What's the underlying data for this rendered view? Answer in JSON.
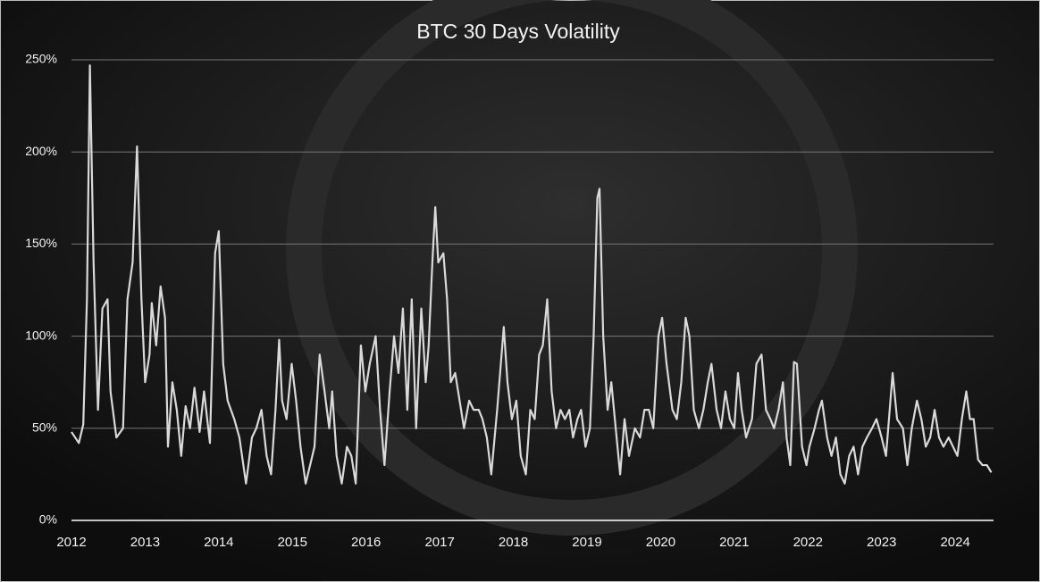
{
  "chart_data": {
    "type": "line",
    "title": "BTC 30 Days Volatility",
    "x": [
      2012.0,
      2012.1,
      2012.16,
      2012.21,
      2012.25,
      2012.3,
      2012.36,
      2012.42,
      2012.49,
      2012.53,
      2012.61,
      2012.7,
      2012.76,
      2012.83,
      2012.89,
      2012.95,
      2013.0,
      2013.06,
      2013.09,
      2013.15,
      2013.21,
      2013.27,
      2013.31,
      2013.37,
      2013.43,
      2013.49,
      2013.55,
      2013.61,
      2013.67,
      2013.74,
      2013.8,
      2013.88,
      2013.95,
      2014.0,
      2014.06,
      2014.12,
      2014.21,
      2014.28,
      2014.37,
      2014.45,
      2014.51,
      2014.58,
      2014.65,
      2014.71,
      2014.77,
      2014.82,
      2014.86,
      2014.92,
      2014.99,
      2015.05,
      2015.11,
      2015.18,
      2015.24,
      2015.3,
      2015.37,
      2015.43,
      2015.5,
      2015.54,
      2015.6,
      2015.67,
      2015.74,
      2015.8,
      2015.86,
      2015.93,
      2015.99,
      2016.05,
      2016.13,
      2016.19,
      2016.25,
      2016.32,
      2016.38,
      2016.44,
      2016.5,
      2016.56,
      2016.62,
      2016.68,
      2016.75,
      2016.81,
      2016.85,
      2016.9,
      2016.94,
      2016.98,
      2017.05,
      2017.1,
      2017.15,
      2017.21,
      2017.27,
      2017.33,
      2017.4,
      2017.46,
      2017.53,
      2017.58,
      2017.64,
      2017.7,
      2017.78,
      2017.84,
      2017.87,
      2017.92,
      2017.98,
      2018.04,
      2018.1,
      2018.17,
      2018.23,
      2018.29,
      2018.35,
      2018.4,
      2018.46,
      2018.52,
      2018.58,
      2018.64,
      2018.7,
      2018.76,
      2018.81,
      2018.87,
      2018.92,
      2018.98,
      2019.04,
      2019.09,
      2019.14,
      2019.17,
      2019.22,
      2019.28,
      2019.33,
      2019.39,
      2019.45,
      2019.51,
      2019.57,
      2019.65,
      2019.72,
      2019.78,
      2019.84,
      2019.9,
      2019.97,
      2020.02,
      2020.08,
      2020.16,
      2020.22,
      2020.28,
      2020.34,
      2020.39,
      2020.45,
      2020.52,
      2020.58,
      2020.64,
      2020.69,
      2020.76,
      2020.82,
      2020.88,
      2020.94,
      2021.0,
      2021.05,
      2021.1,
      2021.16,
      2021.24,
      2021.3,
      2021.37,
      2021.43,
      2021.49,
      2021.54,
      2021.6,
      2021.66,
      2021.71,
      2021.76,
      2021.81,
      2021.85,
      2021.92,
      2021.98,
      2022.02,
      2022.09,
      2022.15,
      2022.19,
      2022.26,
      2022.32,
      2022.38,
      2022.44,
      2022.5,
      2022.56,
      2022.62,
      2022.68,
      2022.74,
      2022.8,
      2022.87,
      2022.93,
      2023.0,
      2023.06,
      2023.12,
      2023.15,
      2023.21,
      2023.29,
      2023.35,
      2023.41,
      2023.48,
      2023.54,
      2023.6,
      2023.66,
      2023.72,
      2023.78,
      2023.84,
      2023.91,
      2023.97,
      2024.03,
      2024.09,
      2024.15,
      2024.2,
      2024.25,
      2024.31,
      2024.37,
      2024.43,
      2024.49
    ],
    "values": [
      48,
      42,
      52,
      120,
      247,
      140,
      60,
      115,
      120,
      70,
      45,
      50,
      120,
      140,
      203,
      120,
      75,
      90,
      118,
      95,
      127,
      110,
      40,
      75,
      60,
      35,
      62,
      50,
      72,
      48,
      70,
      42,
      145,
      157,
      85,
      65,
      55,
      45,
      20,
      45,
      50,
      60,
      35,
      25,
      60,
      98,
      65,
      55,
      85,
      65,
      40,
      20,
      30,
      40,
      90,
      72,
      50,
      70,
      35,
      20,
      40,
      35,
      20,
      95,
      70,
      85,
      100,
      60,
      30,
      70,
      100,
      80,
      115,
      60,
      120,
      50,
      115,
      75,
      95,
      140,
      170,
      140,
      145,
      120,
      75,
      80,
      65,
      50,
      65,
      60,
      60,
      55,
      45,
      25,
      60,
      90,
      105,
      75,
      55,
      65,
      35,
      25,
      60,
      55,
      90,
      95,
      120,
      70,
      50,
      60,
      55,
      60,
      45,
      55,
      60,
      40,
      50,
      100,
      175,
      180,
      100,
      60,
      75,
      50,
      25,
      55,
      35,
      50,
      45,
      60,
      60,
      50,
      100,
      110,
      85,
      60,
      55,
      75,
      110,
      100,
      60,
      50,
      60,
      75,
      85,
      60,
      50,
      70,
      55,
      50,
      80,
      60,
      45,
      55,
      85,
      90,
      60,
      55,
      50,
      60,
      75,
      45,
      30,
      86,
      85,
      40,
      30,
      40,
      50,
      60,
      65,
      45,
      35,
      45,
      25,
      20,
      35,
      40,
      25,
      40,
      45,
      50,
      55,
      45,
      35,
      65,
      80,
      55,
      50,
      30,
      50,
      65,
      55,
      40,
      45,
      60,
      45,
      40,
      45,
      40,
      35,
      55,
      70,
      55,
      55,
      33,
      30,
      30,
      26
    ],
    "color": "#d9d9d9",
    "xlim": [
      2012,
      2024.52
    ],
    "xticks": [
      2012,
      2013,
      2014,
      2015,
      2016,
      2017,
      2018,
      2019,
      2020,
      2021,
      2022,
      2023,
      2024
    ],
    "ylim": [
      0,
      250
    ],
    "yticks": [
      {
        "value": 0,
        "label": "0%"
      },
      {
        "value": 50,
        "label": "50%"
      },
      {
        "value": 100,
        "label": "100%"
      },
      {
        "value": 150,
        "label": "150%"
      },
      {
        "value": 200,
        "label": "200%"
      },
      {
        "value": 250,
        "label": "250%"
      }
    ],
    "grid": true
  }
}
